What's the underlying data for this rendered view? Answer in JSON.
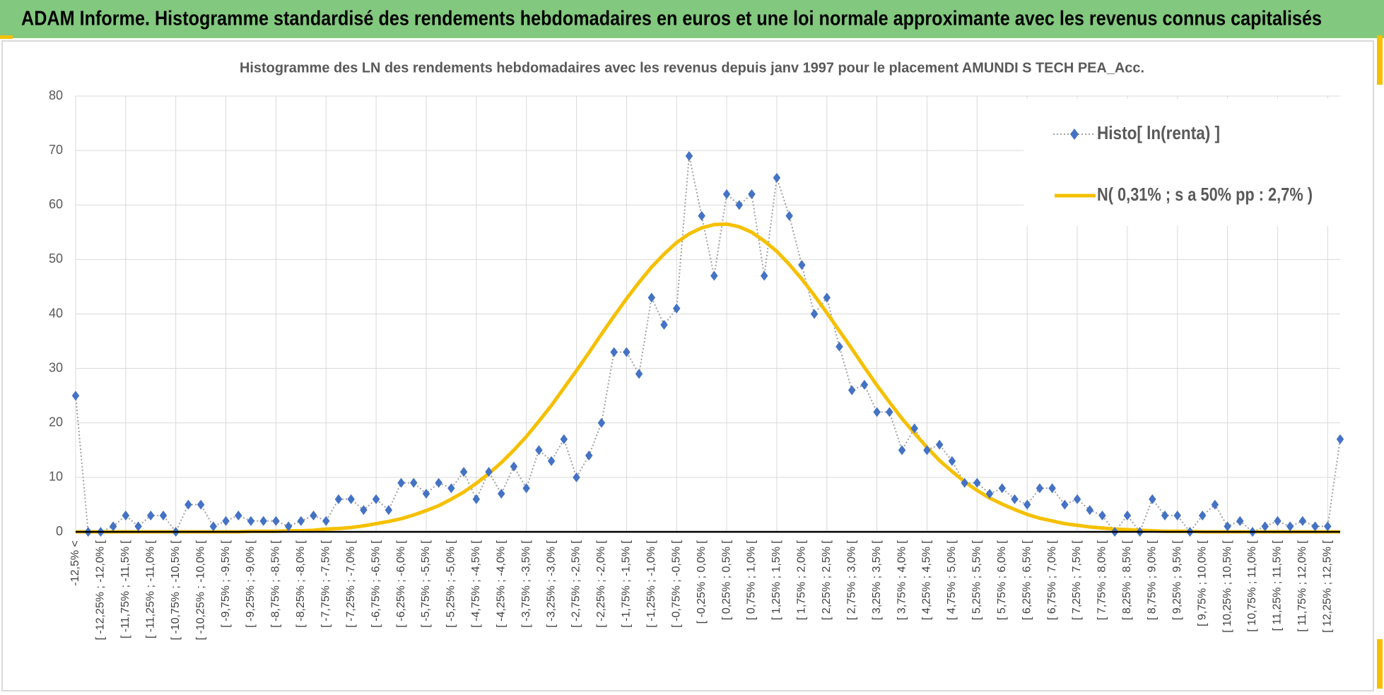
{
  "header": {
    "title": "ADAM Informe. Histogramme standardisé des rendements hebdomadaires en euros et une loi normale approximante avec les revenus connus capitalisés"
  },
  "chart_data": {
    "type": "line",
    "title": "Histogramme  des LN des rendements  hebdomadaires avec les revenus depuis janv 1997 pour le placement AMUNDI S TECH PEA_Acc.",
    "categories": [
      "-12,5% <",
      null,
      "[ -12,25% ; -12,0% [",
      null,
      "[ -11,75% ; -11,5% [",
      null,
      "[ -11,25% ; -11,0% [",
      null,
      "[ -10,75% ; -10,5% [",
      null,
      "[ -10,25% ; -10,0% [",
      null,
      "[ -9,75% ; -9,5% [",
      null,
      "[ -9,25% ; -9,0% [",
      null,
      "[ -8,75% ; -8,5% [",
      null,
      "[ -8,25% ; -8,0% [",
      null,
      "[ -7,75% ; -7,5% [",
      null,
      "[ -7,25% ; -7,0% [",
      null,
      "[ -6,75% ; -6,5% [",
      null,
      "[ -6,25% ; -6,0% [",
      null,
      "[ -5,75% ; -5,5% [",
      null,
      "[ -5,25% ; -5,0% [",
      null,
      "[ -4,75% ; -4,5% [",
      null,
      "[ -4,25% ; -4,0% [",
      null,
      "[ -3,75% ; -3,5% [",
      null,
      "[ -3,25% ; -3,0% [",
      null,
      "[ -2,75% ; -2,5% [",
      null,
      "[ -2,25% ; -2,0% [",
      null,
      "[ -1,75% ; -1,5% [",
      null,
      "[ -1,25% ; -1,0% [",
      null,
      "[ -0,75% ; -0,5% [",
      null,
      "[ -0,25% ; 0,0% [",
      null,
      "[ 0,25% ; 0,5% [",
      null,
      "[ 0,75% ; 1,0% [",
      null,
      "[ 1,25% ; 1,5% [",
      null,
      "[ 1,75% ; 2,0% [",
      null,
      "[ 2,25% ; 2,5% [",
      null,
      "[ 2,75% ; 3,0% [",
      null,
      "[ 3,25% ; 3,5% [",
      null,
      "[ 3,75% ; 4,0% [",
      null,
      "[ 4,25% ; 4,5% [",
      null,
      "[ 4,75% ; 5,0% [",
      null,
      "[ 5,25% ; 5,5% [",
      null,
      "[ 5,75% ; 6,0% [",
      null,
      "[ 6,25% ; 6,5% [",
      null,
      "[ 6,75% ; 7,0% [",
      null,
      "[ 7,25% ; 7,5% [",
      null,
      "[ 7,75% ; 8,0% [",
      null,
      "[ 8,25% ; 8,5% [",
      null,
      "[ 8,75% ; 9,0% [",
      null,
      "[ 9,25% ; 9,5% [",
      null,
      "[ 9,75% ; 10,0% [",
      null,
      "[ 10,25% ; 10,5% [",
      null,
      "[ 10,75% ; 11,0% [",
      null,
      "[ 11,25% ; 11,5% [",
      null,
      "[ 11,75% ; 12,0% [",
      null,
      "[ 12,25% ; 12,5% [",
      null
    ],
    "series": [
      {
        "name": "Histo[ ln(renta) ]",
        "color": "#4472c4",
        "line_color": "#a0a0a0",
        "values": [
          25,
          0,
          0,
          1,
          3,
          1,
          3,
          3,
          0,
          5,
          5,
          1,
          2,
          3,
          2,
          2,
          2,
          1,
          2,
          3,
          2,
          6,
          6,
          4,
          6,
          4,
          9,
          9,
          7,
          9,
          8,
          11,
          6,
          11,
          7,
          12,
          8,
          15,
          13,
          17,
          10,
          14,
          20,
          33,
          33,
          29,
          43,
          38,
          41,
          69,
          58,
          47,
          62,
          60,
          62,
          47,
          65,
          58,
          49,
          40,
          43,
          34,
          26,
          27,
          22,
          22,
          15,
          19,
          15,
          16,
          13,
          9,
          9,
          7,
          8,
          6,
          5,
          8,
          8,
          5,
          6,
          4,
          3,
          0,
          3,
          0,
          6,
          3,
          3,
          0,
          3,
          5,
          1,
          2,
          0,
          1,
          2,
          1,
          2,
          1,
          1,
          17
        ]
      },
      {
        "name": "N( 0,31% ; s a 50% pp : 2,7% )",
        "color": "#f5c000",
        "values": [
          0,
          0,
          0,
          0,
          0,
          0,
          0,
          0,
          0,
          0,
          0,
          0,
          0,
          0,
          0.1,
          0.1,
          0.1,
          0.2,
          0.2,
          0.3,
          0.5,
          0.6,
          0.8,
          1.1,
          1.5,
          1.9,
          2.4,
          3.1,
          3.9,
          4.8,
          6.0,
          7.3,
          8.9,
          10.7,
          12.7,
          15.0,
          17.5,
          20.3,
          23.2,
          26.4,
          29.6,
          32.9,
          36.3,
          39.6,
          42.8,
          45.8,
          48.6,
          51.0,
          53.1,
          54.7,
          55.8,
          56.4,
          56.5,
          56.0,
          55.0,
          53.4,
          51.5,
          49.1,
          46.4,
          43.4,
          40.2,
          36.9,
          33.6,
          30.2,
          26.9,
          23.8,
          20.8,
          18.1,
          15.5,
          13.1,
          11.1,
          9.2,
          7.6,
          6.2,
          5.1,
          4.1,
          3.2,
          2.5,
          2.0,
          1.5,
          1.2,
          0.9,
          0.7,
          0.5,
          0.4,
          0.3,
          0.2,
          0.1,
          0.1,
          0.1,
          0,
          0,
          0,
          0,
          0,
          0,
          0,
          0,
          0,
          0,
          0,
          0
        ]
      }
    ],
    "ylim": [
      0,
      80
    ],
    "yticks": [
      0,
      10,
      20,
      30,
      40,
      50,
      60,
      70,
      80
    ],
    "grid": true,
    "legend": "top-right"
  }
}
